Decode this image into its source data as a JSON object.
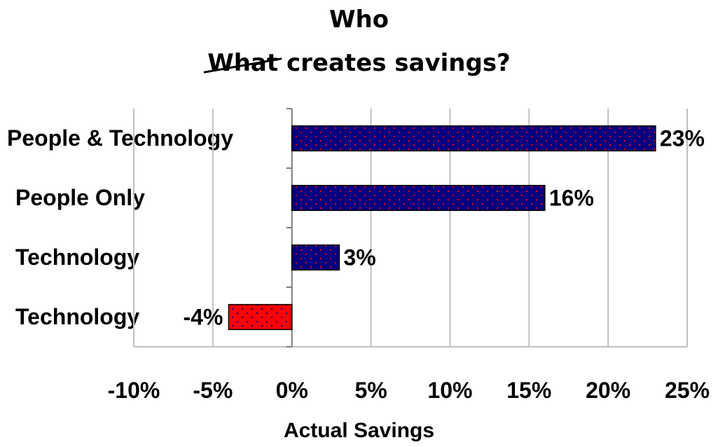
{
  "title": {
    "main": "Who",
    "struck_word": "What",
    "rest": " creates savings?"
  },
  "chart_data": {
    "type": "bar",
    "orientation": "horizontal",
    "categories": [
      "People & Technology",
      "People Only",
      "Technology",
      "Technology"
    ],
    "values": [
      23,
      16,
      3,
      -4
    ],
    "value_labels": [
      "23%",
      "16%",
      "3%",
      "-4%"
    ],
    "xlabel": "Actual Savings",
    "ylabel": "",
    "xlim": [
      -10,
      25
    ],
    "xticks": [
      -10,
      -5,
      0,
      5,
      10,
      15,
      20,
      25
    ],
    "xtick_labels": [
      "-10%",
      "-5%",
      "0%",
      "5%",
      "10%",
      "15%",
      "20%",
      "25%"
    ],
    "grid": "vertical",
    "legend": "none",
    "colors": {
      "positive": "#000080",
      "negative": "#ff0000",
      "positive_dots": "#ff0000",
      "negative_dots": "#000080",
      "grid": "#c0c0c0",
      "axis": "#808080"
    }
  }
}
